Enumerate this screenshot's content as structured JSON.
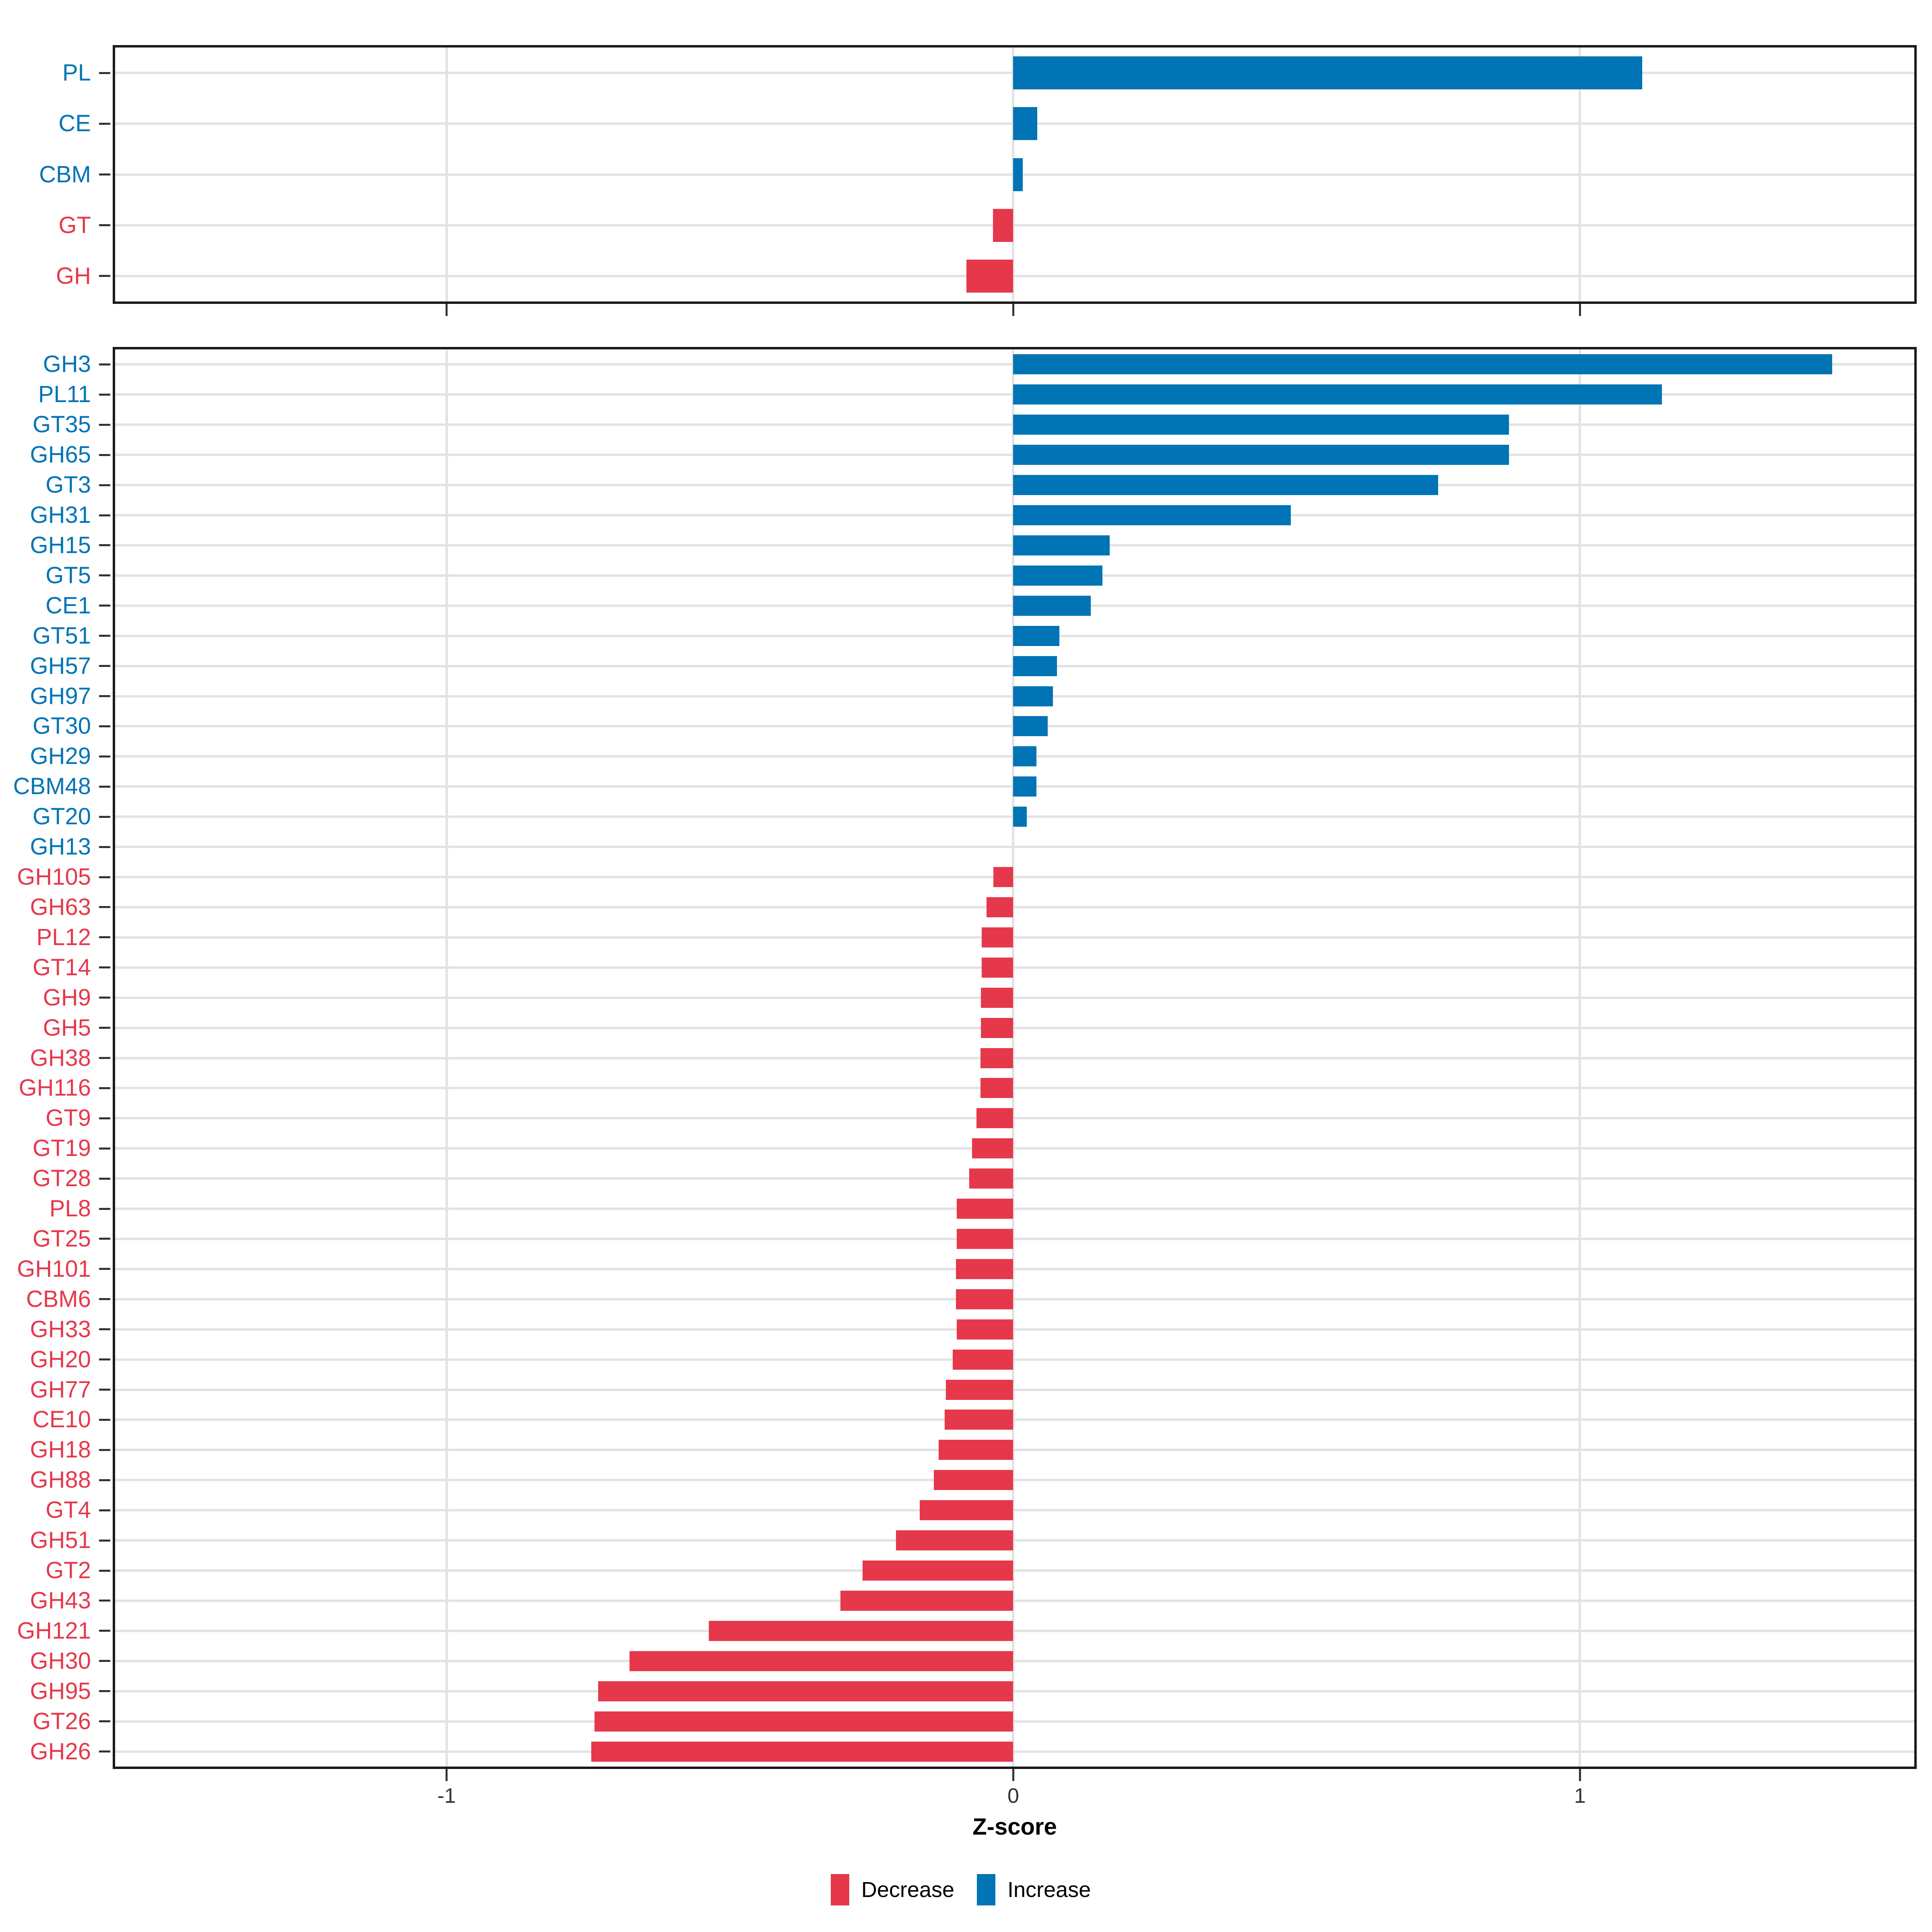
{
  "chart_data": [
    {
      "type": "bar",
      "orientation": "horizontal",
      "panel": "cazyme-categories",
      "categories": [
        "PL",
        "CE",
        "CBM",
        "GT",
        "GH"
      ],
      "values": [
        1.11,
        0.042,
        0.017,
        -0.036,
        -0.083
      ],
      "xlim": [
        -1.585,
        1.59
      ],
      "xticks": [
        -1,
        0,
        1
      ],
      "grid": "major-only",
      "legend_position": "none"
    },
    {
      "type": "bar",
      "orientation": "horizontal",
      "panel": "cazyme-families",
      "categories": [
        "GH3",
        "PL11",
        "GT35",
        "GH65",
        "GT3",
        "GH31",
        "GH15",
        "GT5",
        "CE1",
        "GT51",
        "GH57",
        "GH97",
        "GT30",
        "GH29",
        "CBM48",
        "GT20",
        "GH13",
        "GH105",
        "GH63",
        "PL12",
        "GT14",
        "GH9",
        "GH5",
        "GH38",
        "GH116",
        "GT9",
        "GT19",
        "GT28",
        "PL8",
        "GT25",
        "GH101",
        "CBM6",
        "GH33",
        "GH20",
        "GH77",
        "CE10",
        "GH18",
        "GH88",
        "GT4",
        "GH51",
        "GT2",
        "GH43",
        "GH121",
        "GH30",
        "GH95",
        "GT26",
        "GH26"
      ],
      "values": [
        1.445,
        1.145,
        0.875,
        0.875,
        0.75,
        0.49,
        0.17,
        0.157,
        0.137,
        0.081,
        0.077,
        0.07,
        0.061,
        0.041,
        0.041,
        0.024,
        0,
        -0.035,
        -0.047,
        -0.056,
        -0.056,
        -0.057,
        -0.057,
        -0.058,
        -0.058,
        -0.065,
        -0.073,
        -0.078,
        -0.1,
        -0.1,
        -0.101,
        -0.101,
        -0.1,
        -0.107,
        -0.119,
        -0.121,
        -0.132,
        -0.14,
        -0.165,
        -0.207,
        -0.266,
        -0.305,
        -0.537,
        -0.677,
        -0.733,
        -0.739,
        -0.745
      ],
      "xlim": [
        -1.585,
        1.59
      ],
      "xticks": [
        -1,
        0,
        1
      ],
      "grid": "major-only",
      "legend_position": "bottom"
    }
  ],
  "axis": {
    "xticks": [
      -1,
      0,
      1
    ],
    "xtick_labels": [
      "-1",
      "0",
      "1"
    ],
    "xlabel": "Z-score"
  },
  "legend": {
    "items": [
      {
        "label": "Decrease",
        "color": "#E5394B"
      },
      {
        "label": "Increase",
        "color": "#0074B5"
      }
    ]
  },
  "colors": {
    "increase": "#0074B5",
    "decrease": "#E5394B",
    "grid": "#E3E3E3",
    "panel_border": "#1A1A1A",
    "tick": "#333333",
    "tick_label_text": "#333333",
    "axis_title_text": "#000000"
  }
}
